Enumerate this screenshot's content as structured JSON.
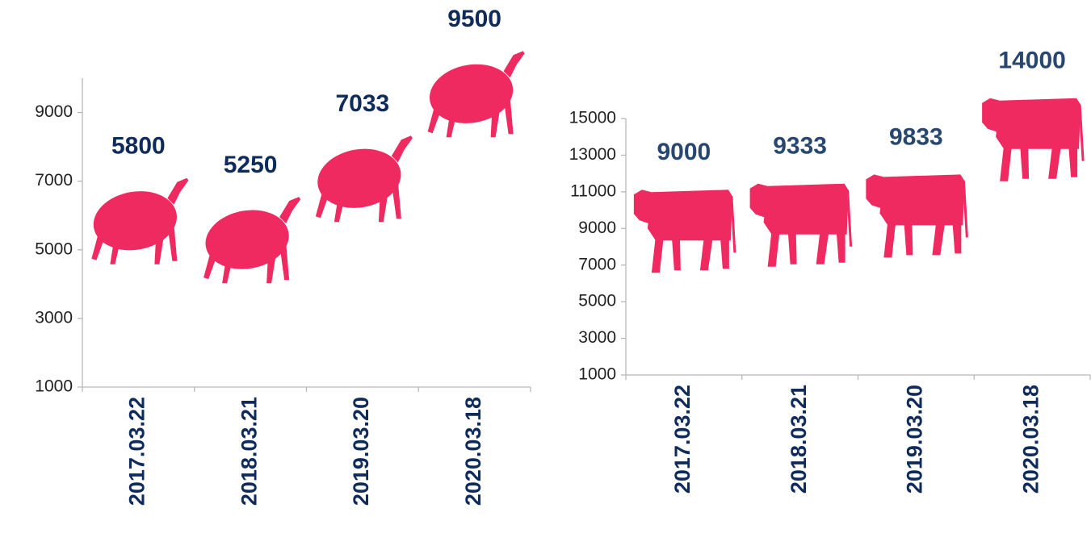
{
  "chart_data": [
    {
      "type": "pictograph",
      "icon": "sheep",
      "color": "#ee2a60",
      "label_color": "#0f2b5b",
      "categories": [
        "2017.03.22",
        "2018.03.21",
        "2019.03.20",
        "2020.03.18"
      ],
      "values": [
        5800,
        5250,
        7033,
        9500
      ],
      "ylim": [
        1000,
        10000
      ],
      "yticks": [
        1000,
        3000,
        5000,
        7000,
        9000
      ]
    },
    {
      "type": "pictograph",
      "icon": "cow",
      "color": "#ee2a60",
      "label_color": "#27476f",
      "categories": [
        "2017.03.22",
        "2018.03.21",
        "2019.03.20",
        "2020.03.18"
      ],
      "values": [
        9000,
        9333,
        9833,
        14000
      ],
      "ylim": [
        1000,
        15000
      ],
      "yticks": [
        1000,
        3000,
        5000,
        7000,
        9000,
        11000,
        13000,
        15000
      ]
    }
  ]
}
